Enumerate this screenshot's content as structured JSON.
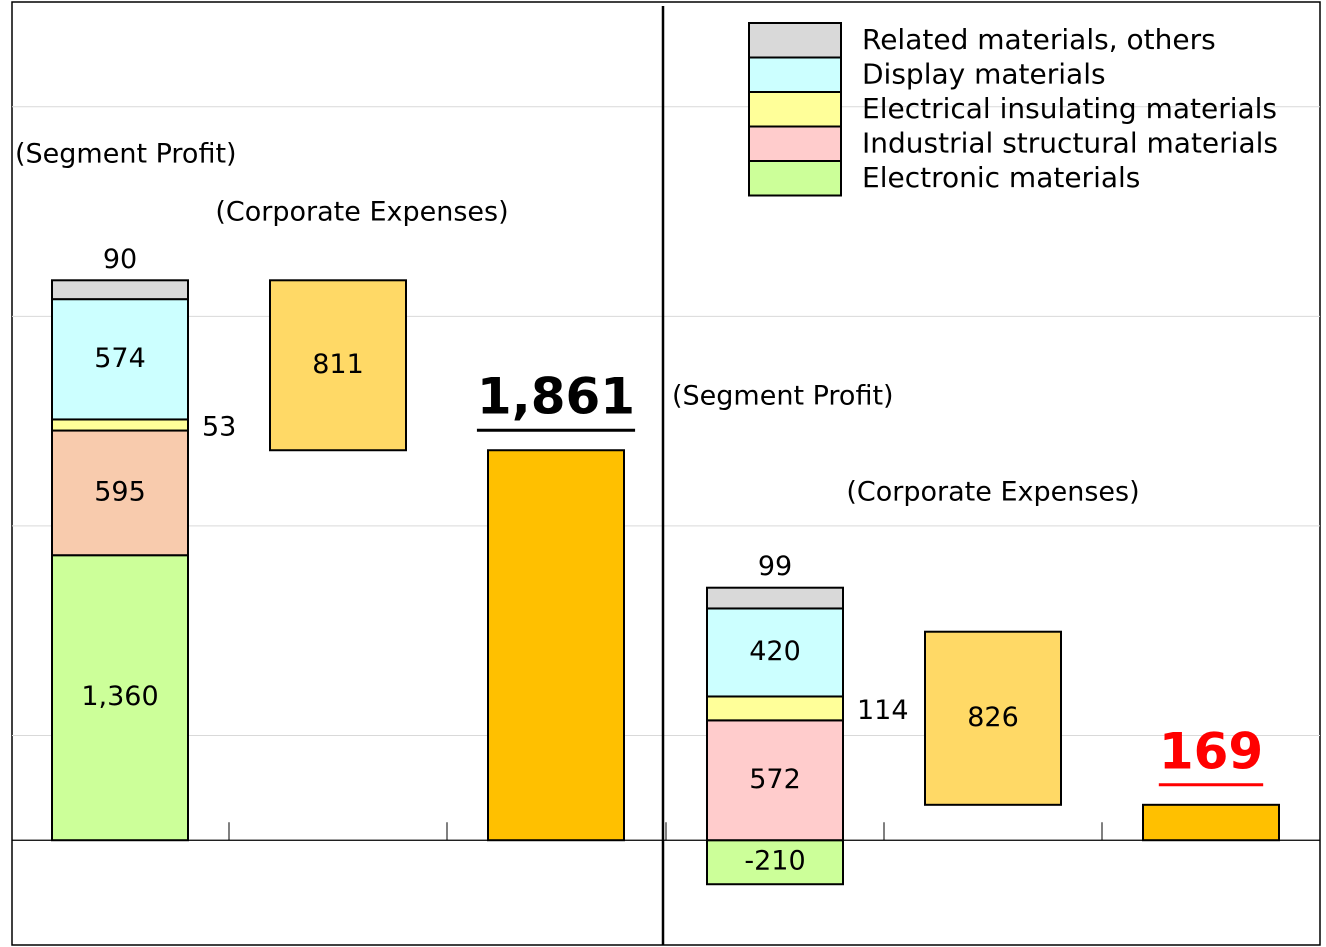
{
  "chart_data": {
    "type": "waterfall",
    "ylim": [
      -500,
      4000
    ],
    "grid_lines": [
      500,
      1500,
      2500,
      3500
    ],
    "series": [
      {
        "name": "Electronic materials",
        "color": "#ccff99"
      },
      {
        "name": "Industrial structural materials",
        "color": "#ffcccc"
      },
      {
        "name": "Electrical insulating materials",
        "color": "#ffff99"
      },
      {
        "name": "Display materials",
        "color": "#ccffff"
      },
      {
        "name": "Related materials, others",
        "color": "#d9d9d9"
      }
    ],
    "expense_color": "#ffd966",
    "result_color": "#ffc000",
    "panels": [
      {
        "segment_label": "(Segment Profit)",
        "expenses_label": "(Corporate Expenses)",
        "segment_colors": [
          "#ccff99",
          "#f8cbad",
          "#ffff99",
          "#ccffff",
          "#d9d9d9"
        ],
        "values": [
          1360,
          595,
          53,
          574,
          90
        ],
        "value_labels": [
          "1,360",
          "595",
          "53",
          "574",
          "90"
        ],
        "expenses": 811,
        "expenses_label_value": "811",
        "result": 1861,
        "result_label": "1,861",
        "result_text_color": "#000000"
      },
      {
        "segment_label": "(Segment Profit)",
        "expenses_label": "(Corporate Expenses)",
        "segment_colors": [
          "#ccff99",
          "#ffcccc",
          "#ffff99",
          "#ccffff",
          "#d9d9d9"
        ],
        "values": [
          -210,
          572,
          114,
          420,
          99
        ],
        "value_labels": [
          "-210",
          "572",
          "114",
          "420",
          "99"
        ],
        "expenses": 826,
        "expenses_label_value": "826",
        "result": 169,
        "result_label": "169",
        "result_text_color": "#ff0000"
      }
    ]
  }
}
